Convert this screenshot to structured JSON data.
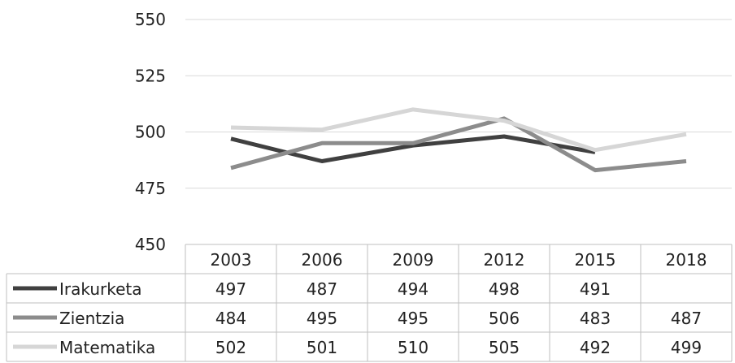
{
  "chart_data": {
    "type": "line",
    "title": "",
    "xlabel": "",
    "ylabel": "",
    "ylim": [
      450,
      550
    ],
    "yticks": [
      450,
      475,
      500,
      525,
      550
    ],
    "grid": true,
    "legend": "data-table",
    "categories": [
      "2003",
      "2006",
      "2009",
      "2012",
      "2015",
      "2018"
    ],
    "series": [
      {
        "name": "Irakurketa",
        "color": "#404040",
        "values": [
          497,
          487,
          494,
          498,
          491,
          null
        ],
        "labels": [
          "497",
          "487",
          "494",
          "498",
          "491",
          ""
        ]
      },
      {
        "name": "Zientzia",
        "color": "#8c8c8c",
        "values": [
          484,
          495,
          495,
          506,
          483,
          487
        ],
        "labels": [
          "484",
          "495",
          "495",
          "506",
          "483",
          "487"
        ]
      },
      {
        "name": "Matematika",
        "color": "#d6d6d6",
        "values": [
          502,
          501,
          510,
          505,
          492,
          499
        ],
        "labels": [
          "502",
          "501",
          "510",
          "505",
          "492",
          "499"
        ]
      }
    ]
  }
}
